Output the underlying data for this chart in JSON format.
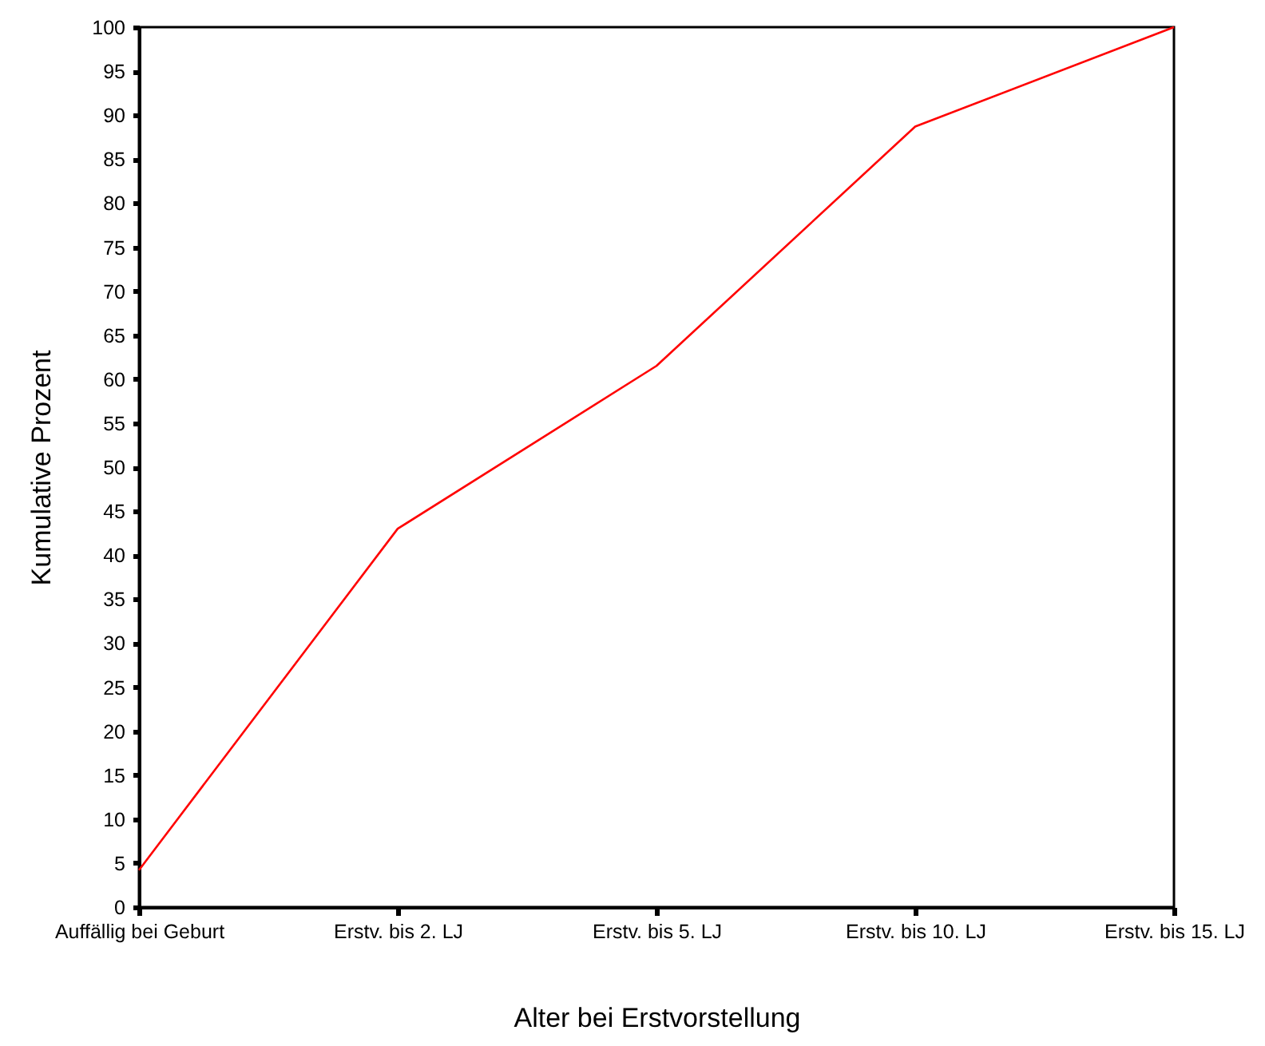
{
  "chart_data": {
    "type": "line",
    "xlabel": "Alter bei Erstvorstellung",
    "ylabel": "Kumulative Prozent",
    "categories": [
      "Auffällig bei Geburt",
      "Erstv. bis 2. LJ",
      "Erstv. bis 5. LJ",
      "Erstv. bis 10. LJ",
      "Erstv. bis 15. LJ"
    ],
    "series": [
      {
        "color": "#ff0000",
        "values": [
          4.2,
          43.0,
          61.5,
          88.7,
          100
        ]
      }
    ],
    "ylim": [
      0,
      100
    ],
    "yticks": [
      0,
      5,
      10,
      15,
      20,
      25,
      30,
      35,
      40,
      45,
      50,
      55,
      60,
      65,
      70,
      75,
      80,
      85,
      90,
      95,
      100
    ],
    "grid": false,
    "marker": "none",
    "line_style": "solid"
  }
}
